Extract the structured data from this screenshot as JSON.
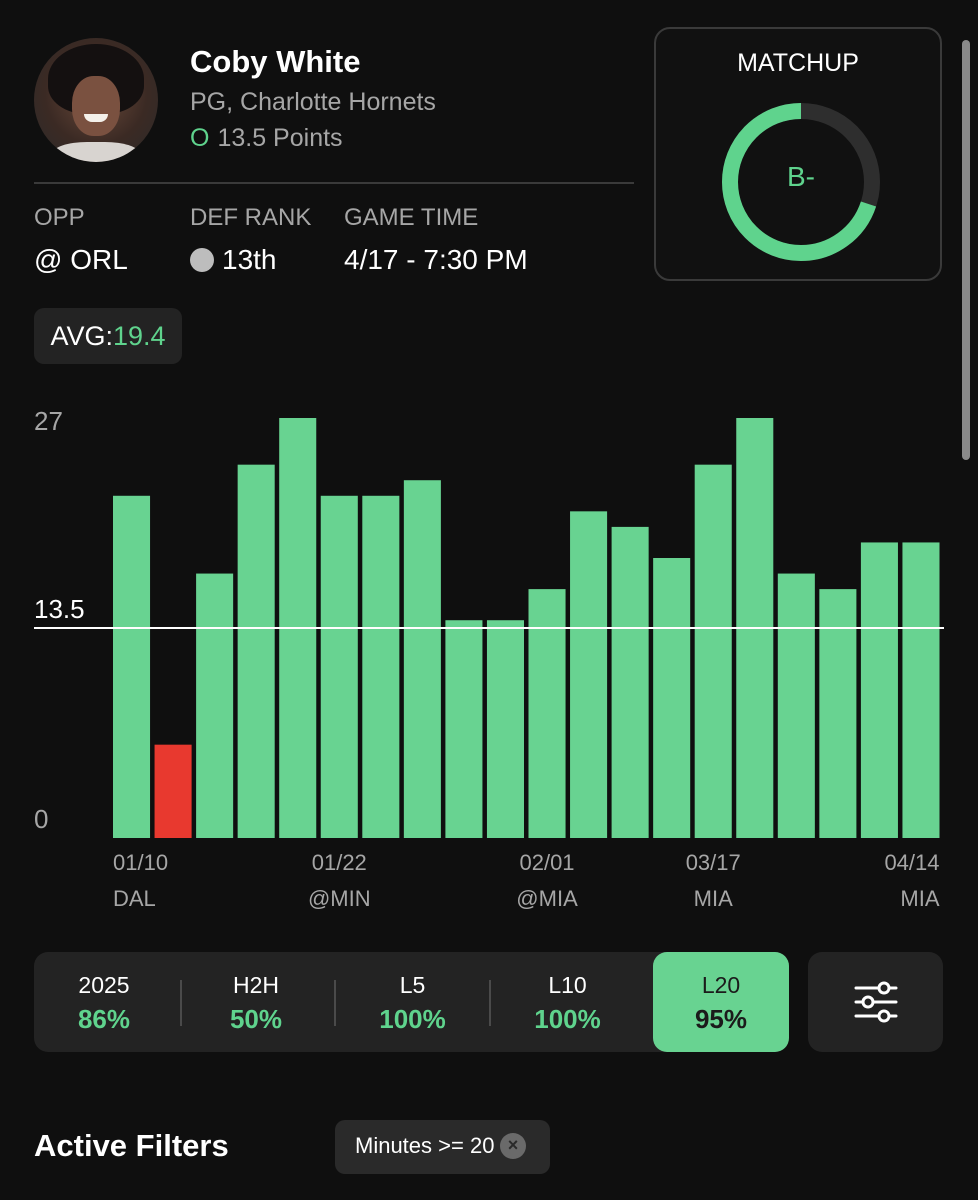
{
  "player": {
    "name": "Coby White",
    "team_line": "PG, Charlotte Hornets",
    "prop_side": "O",
    "prop_line": "13.5 Points"
  },
  "game_info": {
    "opp_label": "OPP",
    "opp_value": "@ ORL",
    "def_rank_label": "DEF RANK",
    "def_rank_value": "13th",
    "game_time_label": "GAME TIME",
    "game_time_value": "4/17 - 7:30 PM"
  },
  "matchup": {
    "title": "MATCHUP",
    "grade": "B-",
    "fill_fraction": 0.7,
    "color": "#5fd38d"
  },
  "average": {
    "label": "AVG:",
    "value": "19.4"
  },
  "chart_data": {
    "type": "bar",
    "title": "",
    "xlabel": "",
    "ylabel": "",
    "ylim": [
      0,
      27
    ],
    "y_ticks": [
      "27",
      "13.5",
      "0"
    ],
    "threshold": 13.5,
    "threshold_label": "13.5",
    "values": [
      22,
      6,
      17,
      24,
      27,
      22,
      22,
      23,
      14,
      14,
      16,
      21,
      20,
      18,
      24,
      27,
      17,
      16,
      19,
      19
    ],
    "colors": {
      "over": "#68d391",
      "under": "#e8392f",
      "threshold_line": "#ffffff"
    },
    "x_labels": [
      {
        "index": 0,
        "date": "01/10",
        "opp": "DAL"
      },
      {
        "index": 5,
        "date": "01/22",
        "opp": "@MIN"
      },
      {
        "index": 10,
        "date": "02/01",
        "opp": "@MIA"
      },
      {
        "index": 14,
        "date": "03/17",
        "opp": "MIA"
      },
      {
        "index": 19,
        "date": "04/14",
        "opp": "MIA"
      }
    ]
  },
  "filters": {
    "segments": [
      {
        "label": "2025",
        "value": "86%"
      },
      {
        "label": "H2H",
        "value": "50%"
      },
      {
        "label": "L5",
        "value": "100%"
      },
      {
        "label": "L10",
        "value": "100%"
      },
      {
        "label": "L20",
        "value": "95%"
      }
    ],
    "active_index": 4,
    "settings_icon": "sliders-icon"
  },
  "active_filters": {
    "title": "Active Filters",
    "chips": [
      {
        "label": "Minutes >= 20",
        "remove_icon": "close-icon"
      }
    ]
  }
}
